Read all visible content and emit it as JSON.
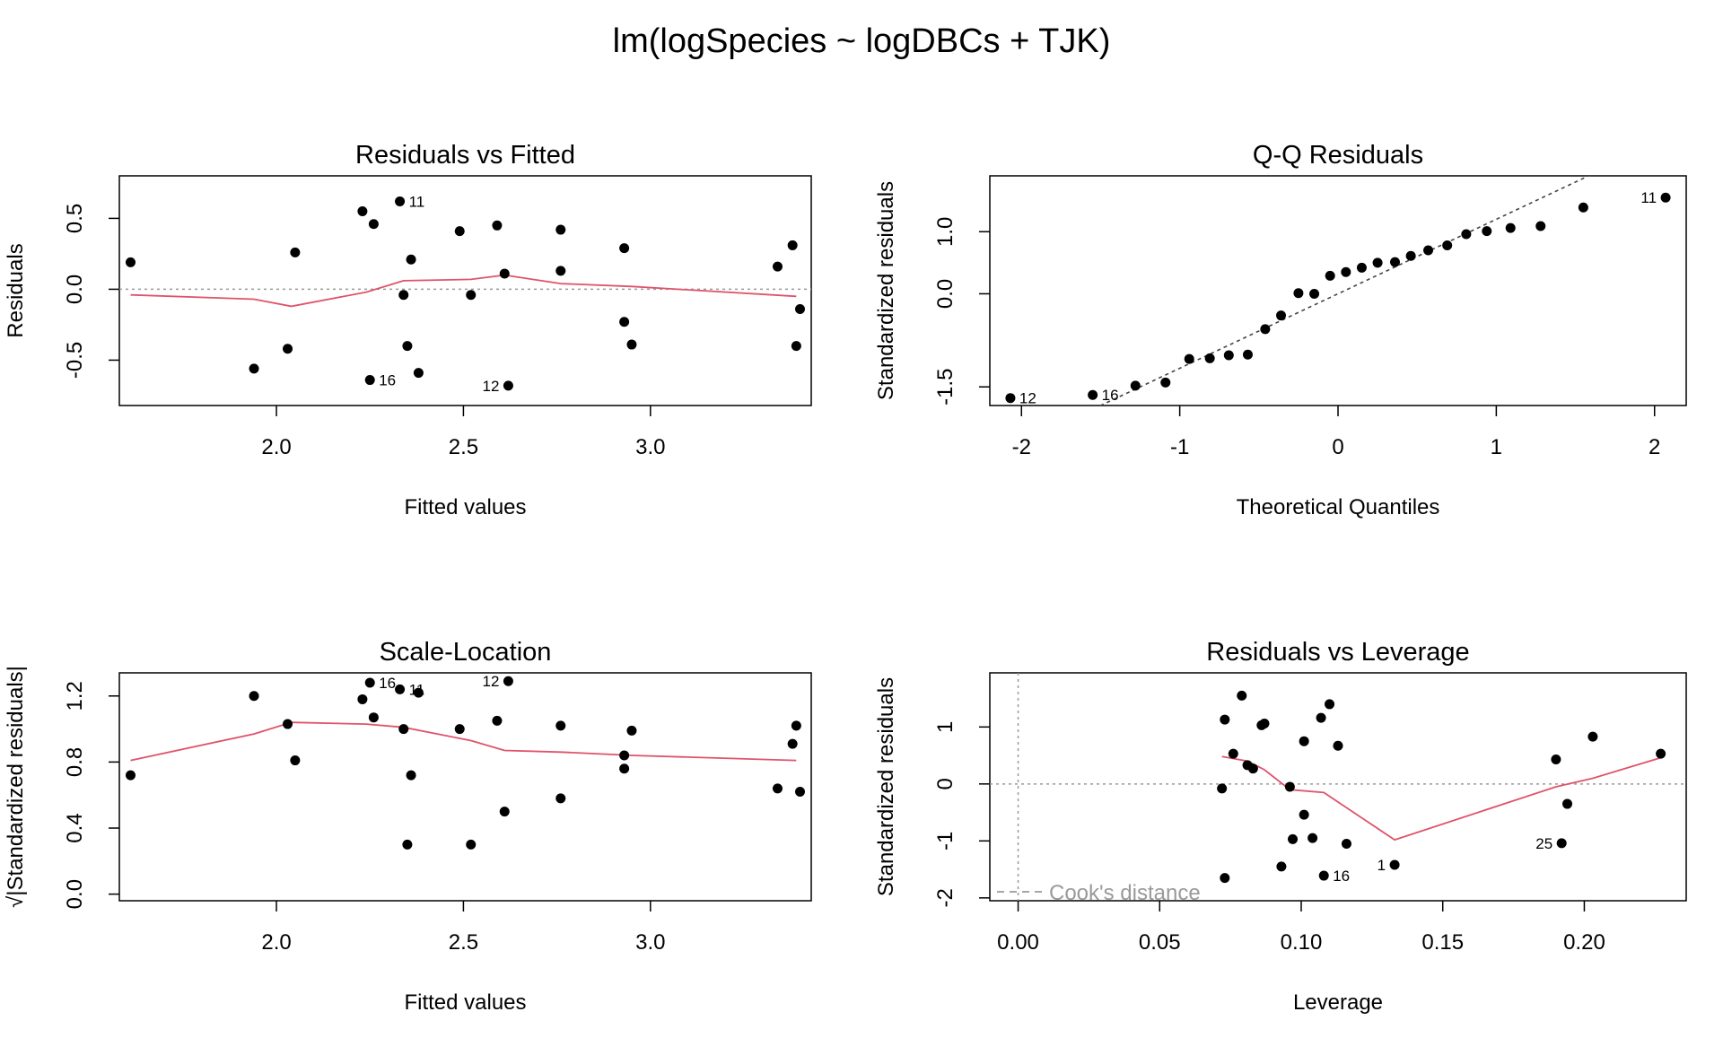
{
  "title": "lm(logSpecies ~ logDBCs + TJK)",
  "colors": {
    "smooth": "#DF536B",
    "reference": "#9a9a9a",
    "points": "#000000",
    "legend_text": "#9a9a9a"
  },
  "chart_data": [
    {
      "type": "scatter",
      "title": "Residuals vs Fitted",
      "xlabel": "Fitted values",
      "ylabel": "Residuals",
      "xlim": [
        1.58,
        3.43
      ],
      "ylim": [
        -0.82,
        0.8
      ],
      "xticks": [
        "2.0",
        "2.5",
        "3.0"
      ],
      "yticks": [
        "-0.5",
        "0.0",
        "0.5"
      ],
      "hline": 0,
      "points": [
        [
          1.61,
          0.19
        ],
        [
          1.94,
          -0.56
        ],
        [
          2.03,
          -0.42
        ],
        [
          2.05,
          0.26
        ],
        [
          2.23,
          0.55
        ],
        [
          2.26,
          0.46
        ],
        [
          2.25,
          -0.64
        ],
        [
          2.33,
          0.62
        ],
        [
          2.34,
          -0.04
        ],
        [
          2.35,
          -0.4
        ],
        [
          2.36,
          0.21
        ],
        [
          2.38,
          -0.59
        ],
        [
          2.49,
          0.41
        ],
        [
          2.52,
          -0.04
        ],
        [
          2.59,
          0.45
        ],
        [
          2.61,
          0.11
        ],
        [
          2.62,
          -0.68
        ],
        [
          2.76,
          0.42
        ],
        [
          2.76,
          0.13
        ],
        [
          2.93,
          0.29
        ],
        [
          2.93,
          -0.23
        ],
        [
          2.95,
          -0.39
        ],
        [
          3.34,
          0.16
        ],
        [
          3.38,
          0.31
        ],
        [
          3.39,
          -0.4
        ],
        [
          3.4,
          -0.14
        ]
      ],
      "smooth": [
        [
          1.61,
          -0.04
        ],
        [
          1.94,
          -0.07
        ],
        [
          2.04,
          -0.12
        ],
        [
          2.24,
          -0.02
        ],
        [
          2.34,
          0.06
        ],
        [
          2.52,
          0.07
        ],
        [
          2.61,
          0.1
        ],
        [
          2.76,
          0.04
        ],
        [
          2.95,
          0.02
        ],
        [
          3.39,
          -0.05
        ]
      ],
      "labels": [
        {
          "text": "11",
          "x": 2.33,
          "y": 0.62,
          "side": "right"
        },
        {
          "text": "16",
          "x": 2.25,
          "y": -0.64,
          "side": "right"
        },
        {
          "text": "12",
          "x": 2.62,
          "y": -0.68,
          "side": "left"
        }
      ]
    },
    {
      "type": "scatter",
      "title": "Q-Q Residuals",
      "xlabel": "Theoretical Quantiles",
      "ylabel": "Standardized residuals",
      "xlim": [
        -2.2,
        2.2
      ],
      "ylim": [
        -1.8,
        1.9
      ],
      "xticks": [
        "-2",
        "-1",
        "0",
        "1",
        "2"
      ],
      "yticks": [
        "-1.5",
        "0.0",
        "1.0"
      ],
      "ref_line": {
        "intercept": 0.0,
        "slope": 1.2
      },
      "points": [
        [
          -2.07,
          -1.68
        ],
        [
          -1.55,
          -1.63
        ],
        [
          -1.28,
          -1.48
        ],
        [
          -1.09,
          -1.43
        ],
        [
          -0.94,
          -1.05
        ],
        [
          -0.81,
          -1.04
        ],
        [
          -0.69,
          -0.99
        ],
        [
          -0.57,
          -0.98
        ],
        [
          -0.46,
          -0.57
        ],
        [
          -0.36,
          -0.35
        ],
        [
          -0.25,
          0.01
        ],
        [
          -0.15,
          0.0
        ],
        [
          -0.05,
          0.29
        ],
        [
          0.05,
          0.35
        ],
        [
          0.15,
          0.42
        ],
        [
          0.25,
          0.5
        ],
        [
          0.36,
          0.51
        ],
        [
          0.46,
          0.61
        ],
        [
          0.57,
          0.7
        ],
        [
          0.69,
          0.78
        ],
        [
          0.81,
          0.96
        ],
        [
          0.94,
          1.01
        ],
        [
          1.09,
          1.06
        ],
        [
          1.28,
          1.09
        ],
        [
          1.55,
          1.39
        ],
        [
          2.07,
          1.55
        ]
      ],
      "labels": [
        {
          "text": "12",
          "x": -2.07,
          "y": -1.68,
          "side": "right"
        },
        {
          "text": "16",
          "x": -1.55,
          "y": -1.63,
          "side": "right"
        },
        {
          "text": "11",
          "x": 2.07,
          "y": 1.55,
          "side": "left"
        }
      ]
    },
    {
      "type": "scatter",
      "title": "Scale-Location",
      "xlabel": "Fitted values",
      "ylabel": "√|Standardized residuals|",
      "xlim": [
        1.58,
        3.43
      ],
      "ylim": [
        -0.04,
        1.34
      ],
      "xticks": [
        "2.0",
        "2.5",
        "3.0"
      ],
      "yticks": [
        "0.0",
        "0.4",
        "0.8",
        "1.2"
      ],
      "points": [
        [
          1.61,
          0.72
        ],
        [
          1.94,
          1.2
        ],
        [
          2.03,
          1.03
        ],
        [
          2.05,
          0.81
        ],
        [
          2.23,
          1.18
        ],
        [
          2.26,
          1.07
        ],
        [
          2.25,
          1.28
        ],
        [
          2.33,
          1.24
        ],
        [
          2.34,
          1.0
        ],
        [
          2.35,
          0.3
        ],
        [
          2.36,
          0.72
        ],
        [
          2.38,
          1.22
        ],
        [
          2.49,
          1.0
        ],
        [
          2.52,
          0.3
        ],
        [
          2.59,
          1.05
        ],
        [
          2.61,
          0.5
        ],
        [
          2.62,
          1.29
        ],
        [
          2.76,
          1.02
        ],
        [
          2.76,
          0.58
        ],
        [
          2.93,
          0.84
        ],
        [
          2.93,
          0.76
        ],
        [
          2.95,
          0.99
        ],
        [
          3.34,
          0.64
        ],
        [
          3.38,
          0.91
        ],
        [
          3.39,
          1.02
        ],
        [
          3.4,
          0.62
        ]
      ],
      "smooth": [
        [
          1.61,
          0.81
        ],
        [
          1.94,
          0.97
        ],
        [
          2.04,
          1.04
        ],
        [
          2.24,
          1.03
        ],
        [
          2.34,
          1.01
        ],
        [
          2.52,
          0.93
        ],
        [
          2.61,
          0.87
        ],
        [
          2.76,
          0.86
        ],
        [
          2.95,
          0.84
        ],
        [
          3.39,
          0.81
        ]
      ],
      "labels": [
        {
          "text": "16",
          "x": 2.25,
          "y": 1.28,
          "side": "right"
        },
        {
          "text": "11",
          "x": 2.33,
          "y": 1.24,
          "side": "right"
        },
        {
          "text": "12",
          "x": 2.62,
          "y": 1.29,
          "side": "left"
        }
      ]
    },
    {
      "type": "scatter",
      "title": "Residuals vs Leverage",
      "xlabel": "Leverage",
      "ylabel": "Standardized residuals",
      "xlim": [
        -0.01,
        0.236
      ],
      "ylim": [
        -2.05,
        1.95
      ],
      "xticks": [
        "0.00",
        "0.05",
        "0.10",
        "0.15",
        "0.20"
      ],
      "yticks": [
        "-2",
        "-1",
        "0",
        "1"
      ],
      "hline": 0,
      "vline": 0,
      "points": [
        [
          0.072,
          -0.08
        ],
        [
          0.073,
          1.13
        ],
        [
          0.073,
          -1.65
        ],
        [
          0.076,
          0.53
        ],
        [
          0.079,
          1.55
        ],
        [
          0.081,
          0.33
        ],
        [
          0.083,
          0.27
        ],
        [
          0.086,
          1.03
        ],
        [
          0.087,
          1.06
        ],
        [
          0.093,
          -1.45
        ],
        [
          0.096,
          -0.05
        ],
        [
          0.097,
          -0.97
        ],
        [
          0.101,
          -0.54
        ],
        [
          0.101,
          0.75
        ],
        [
          0.104,
          -0.95
        ],
        [
          0.107,
          1.16
        ],
        [
          0.108,
          -1.61
        ],
        [
          0.11,
          1.4
        ],
        [
          0.113,
          0.67
        ],
        [
          0.116,
          -1.05
        ],
        [
          0.133,
          -1.42
        ],
        [
          0.19,
          0.43
        ],
        [
          0.192,
          -1.04
        ],
        [
          0.194,
          -0.35
        ],
        [
          0.203,
          0.83
        ],
        [
          0.227,
          0.53
        ]
      ],
      "smooth": [
        [
          0.072,
          0.48
        ],
        [
          0.081,
          0.4
        ],
        [
          0.087,
          0.25
        ],
        [
          0.096,
          -0.1
        ],
        [
          0.108,
          -0.15
        ],
        [
          0.133,
          -0.98
        ],
        [
          0.19,
          -0.05
        ],
        [
          0.203,
          0.1
        ],
        [
          0.227,
          0.46
        ]
      ],
      "labels": [
        {
          "text": "16",
          "x": 0.108,
          "y": -1.61,
          "side": "right"
        },
        {
          "text": "1",
          "x": 0.133,
          "y": -1.42,
          "side": "left"
        },
        {
          "text": "25",
          "x": 0.192,
          "y": -1.04,
          "side": "left"
        }
      ],
      "legend": {
        "text": "Cook's distance",
        "position": "bottom-left"
      }
    }
  ]
}
